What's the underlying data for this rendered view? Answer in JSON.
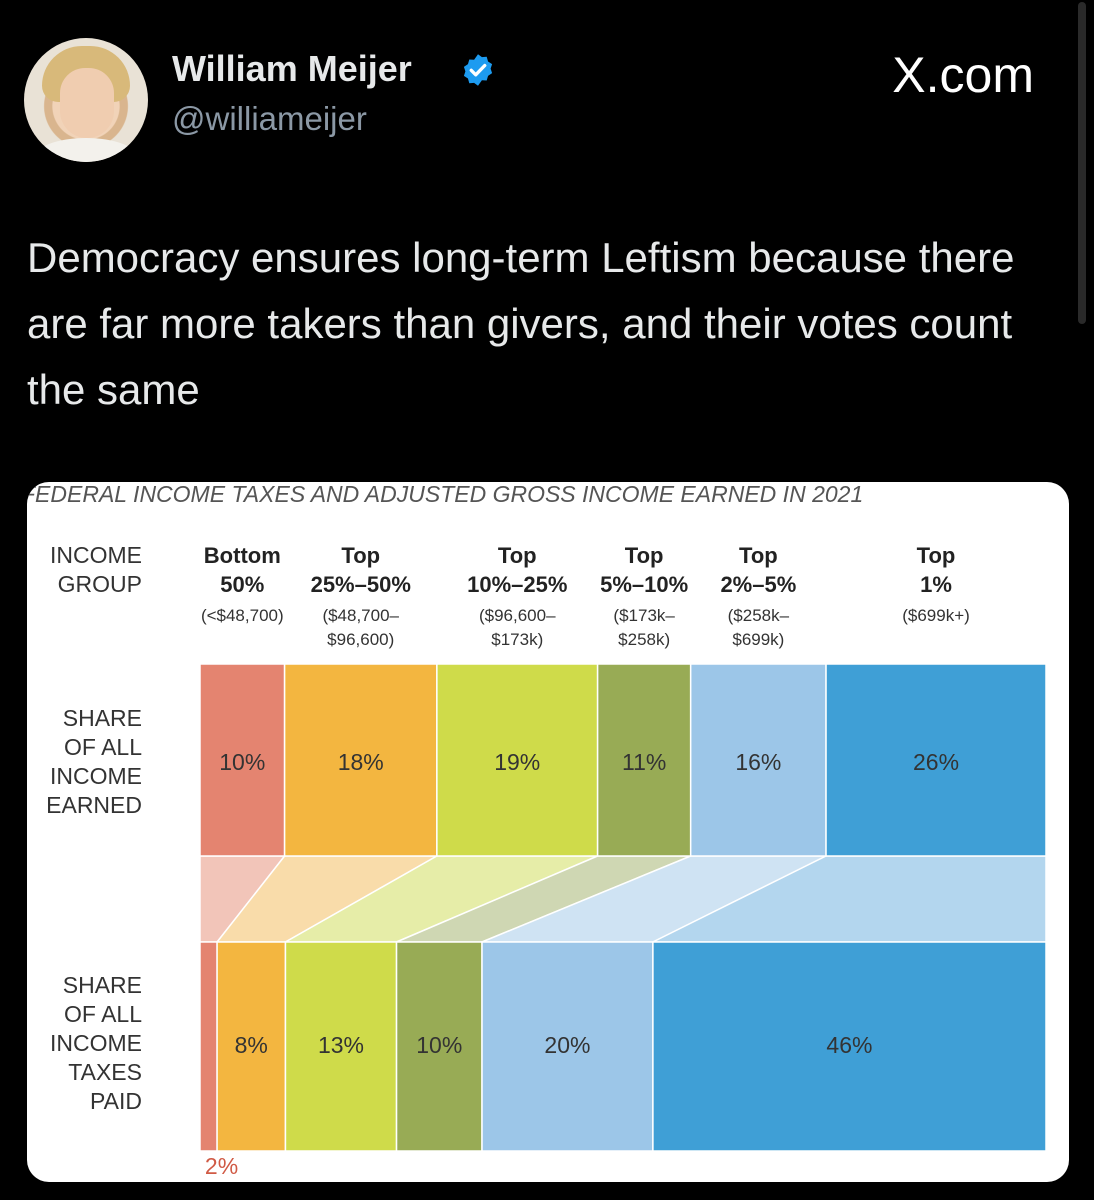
{
  "tweet": {
    "author_name": "William Meijer",
    "handle": "@williameijer",
    "brand": "X.com",
    "text": "Democracy ensures long-term Leftism because there are far more takers than givers, and their votes count the same"
  },
  "colors": {
    "groups": [
      "#e48470",
      "#f3b640",
      "#cfdb4a",
      "#98ab55",
      "#9cc6e8",
      "#3f9fd6"
    ],
    "connectors": [
      "#f2c5b9",
      "#f9dcaa",
      "#e6eda8",
      "#cfd7b3",
      "#cfe3f3",
      "#b3d6ee"
    ],
    "label_red": "#d05a45",
    "verified_blue": "#1d9bf0"
  },
  "chart_data": {
    "type": "bar",
    "title": "FEDERAL INCOME TAXES AND ADJUSTED GROSS INCOME EARNED IN 2021",
    "row_labels": {
      "group": [
        "INCOME",
        "GROUP"
      ],
      "earned": [
        "SHARE",
        "OF ALL",
        "INCOME",
        "EARNED"
      ],
      "paid": [
        "SHARE",
        "OF ALL",
        "INCOME",
        "TAXES",
        "PAID"
      ]
    },
    "categories": [
      {
        "name": [
          "Bottom",
          "50%"
        ],
        "range": [
          "(<$48,700)"
        ]
      },
      {
        "name": [
          "Top",
          "25%–50%"
        ],
        "range": [
          "($48,700–",
          "$96,600)"
        ]
      },
      {
        "name": [
          "Top",
          "10%–25%"
        ],
        "range": [
          "($96,600–",
          "$173k)"
        ]
      },
      {
        "name": [
          "Top",
          "5%–10%"
        ],
        "range": [
          "($173k–",
          "$258k)"
        ]
      },
      {
        "name": [
          "Top",
          "2%–5%"
        ],
        "range": [
          "($258k–",
          "$699k)"
        ]
      },
      {
        "name": [
          "Top",
          "1%"
        ],
        "range": [
          "($699k+)"
        ]
      }
    ],
    "series": [
      {
        "name": "SHARE OF ALL INCOME EARNED",
        "values": [
          10,
          18,
          19,
          11,
          16,
          26
        ],
        "labels": [
          "10%",
          "18%",
          "19%",
          "11%",
          "16%",
          "26%"
        ]
      },
      {
        "name": "SHARE OF ALL INCOME TAXES PAID",
        "values": [
          2,
          8,
          13,
          10,
          20,
          46
        ],
        "labels": [
          "2%",
          "8%",
          "13%",
          "10%",
          "20%",
          "46%"
        ]
      }
    ]
  }
}
